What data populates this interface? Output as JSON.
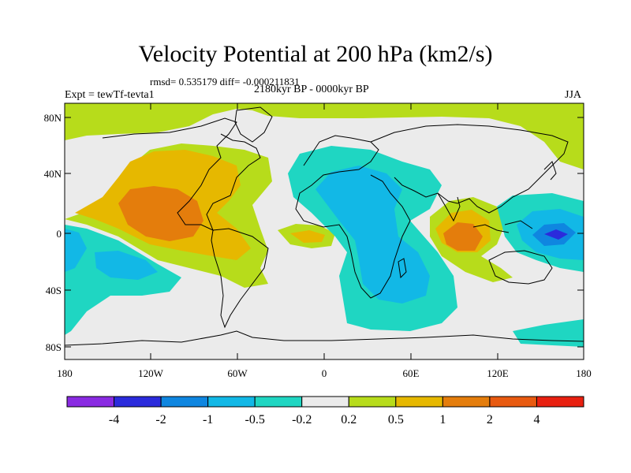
{
  "title": "Velocity Potential at 200 hPa (km2/s)",
  "stats": "rmsd= 0.535179  diff= -0.000211831",
  "period": "2180kyr BP - 0000kyr BP",
  "experiment": "Expt = tewTf-tevta1",
  "season": "JJA",
  "axes": {
    "lat_labels": [
      "80N",
      "40N",
      "0",
      "40S",
      "80S"
    ],
    "lon_labels": [
      "180",
      "120W",
      "60W",
      "0",
      "60E",
      "120E",
      "180"
    ]
  },
  "colorbar": {
    "colors": [
      "#8a2be2",
      "#2b2bdc",
      "#0f86e0",
      "#12b8e6",
      "#1fd6c2",
      "#ebebeb",
      "#b7dc1b",
      "#e6b800",
      "#e47d0c",
      "#e85a10",
      "#e82010"
    ],
    "labels": [
      "-4",
      "-2",
      "-1",
      "-0.5",
      "-0.2",
      "0.2",
      "0.5",
      "1",
      "2",
      "4"
    ]
  }
}
